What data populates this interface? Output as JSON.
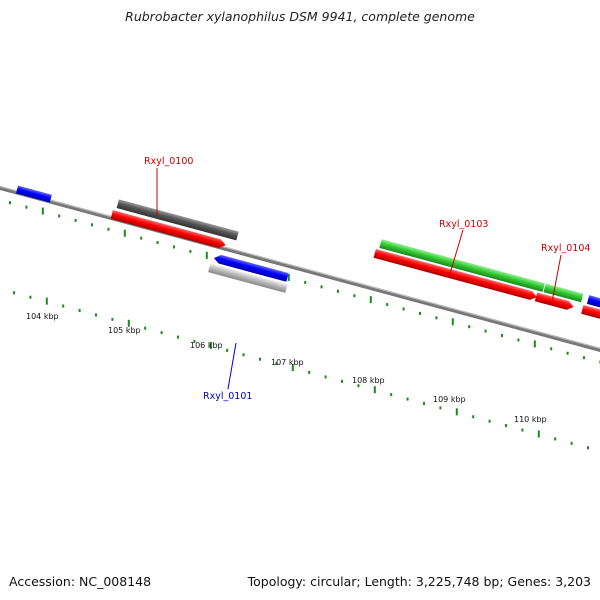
{
  "title": "Rubrobacter xylanophilus DSM 9941, complete genome",
  "footer": {
    "accession": "Accession: NC_008148",
    "summary": "Topology: circular; Length: 3,225,748 bp; Genes: 3,203"
  },
  "scale_labels": [
    "104 kbp",
    "105 kbp",
    "106 kbp",
    "107 kbp",
    "108 kbp",
    "109 kbp",
    "110 kbp"
  ],
  "gene_labels": [
    {
      "text": "Rxyl_0100",
      "color": "#cc0000"
    },
    {
      "text": "Rxyl_0101",
      "color": "#0000cc"
    },
    {
      "text": "Rxyl_0103",
      "color": "#cc0000"
    },
    {
      "text": "Rxyl_0104",
      "color": "#cc0000"
    }
  ],
  "colors": {
    "forward_cds": "#ff0000",
    "reverse_cds": "#0000ff",
    "gene_forward": "#555555",
    "gene_reverse": "#bbbbbb",
    "rrna": "#33cc33",
    "backbone": "#777777",
    "ticks": "#1a8a1a"
  }
}
